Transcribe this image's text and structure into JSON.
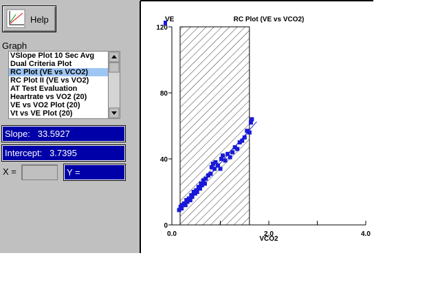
{
  "toolbar": {
    "help_button": "Help"
  },
  "graph_list": {
    "label": "Graph",
    "selected": 2,
    "items": [
      "VSlope Plot 10 Sec Avg",
      "Dual Criteria Plot",
      "RC Plot (VE vs VCO2)",
      "RC Plot II (VE vs VO2)",
      "AT Test Evaluation",
      "Heartrate vs VO2 (20)",
      "VE vs VO2 Plot (20)",
      "Vt vs VE Plot (20)"
    ]
  },
  "results": {
    "slope_label": "Slope:",
    "slope": 33.5927,
    "intercept_label": "Intercept:",
    "intercept": 3.7395,
    "x_label": "X =",
    "y_label": "Y ="
  },
  "chart_data": {
    "type": "scatter",
    "title": "RC Plot (VE vs VCO2)",
    "x_label": "VCO2",
    "y_label": "VE",
    "color": "#1818d8",
    "fit_color": "#1818d8",
    "x": [
      0.15,
      0.18,
      0.2,
      0.22,
      0.25,
      0.28,
      0.3,
      0.32,
      0.35,
      0.38,
      0.4,
      0.42,
      0.45,
      0.48,
      0.5,
      0.52,
      0.55,
      0.58,
      0.6,
      0.62,
      0.65,
      0.68,
      0.7,
      0.75,
      0.8,
      0.82,
      0.85,
      0.88,
      0.9,
      0.95,
      1.0,
      1.02,
      1.05,
      1.1,
      1.15,
      1.2,
      1.25,
      1.3,
      1.35,
      1.4,
      1.45,
      1.5,
      1.55,
      1.6,
      1.63,
      1.65
    ],
    "values": [
      9,
      11,
      10,
      12,
      13,
      12,
      15,
      14,
      16,
      15,
      18,
      17,
      20,
      19,
      21,
      20,
      23,
      22,
      25,
      24,
      27,
      25,
      28,
      30,
      31,
      35,
      37,
      34,
      38,
      36,
      34,
      40,
      42,
      39,
      43,
      41,
      44,
      47,
      46,
      50,
      51,
      53,
      57,
      56,
      62,
      64
    ],
    "fit_xrange": [
      0.15,
      1.75
    ],
    "shaded_region": [
      0.17,
      1.6
    ],
    "xlim": [
      0,
      4
    ],
    "ylim": [
      0,
      120
    ],
    "xticks": [
      {
        "value": 0,
        "label": "0.0"
      },
      {
        "value": 2,
        "label": "2.0"
      },
      {
        "value": 4,
        "label": "4.0"
      }
    ],
    "xminor_ticks": [
      1,
      3
    ],
    "yticks": [
      0,
      40,
      80,
      120
    ]
  }
}
